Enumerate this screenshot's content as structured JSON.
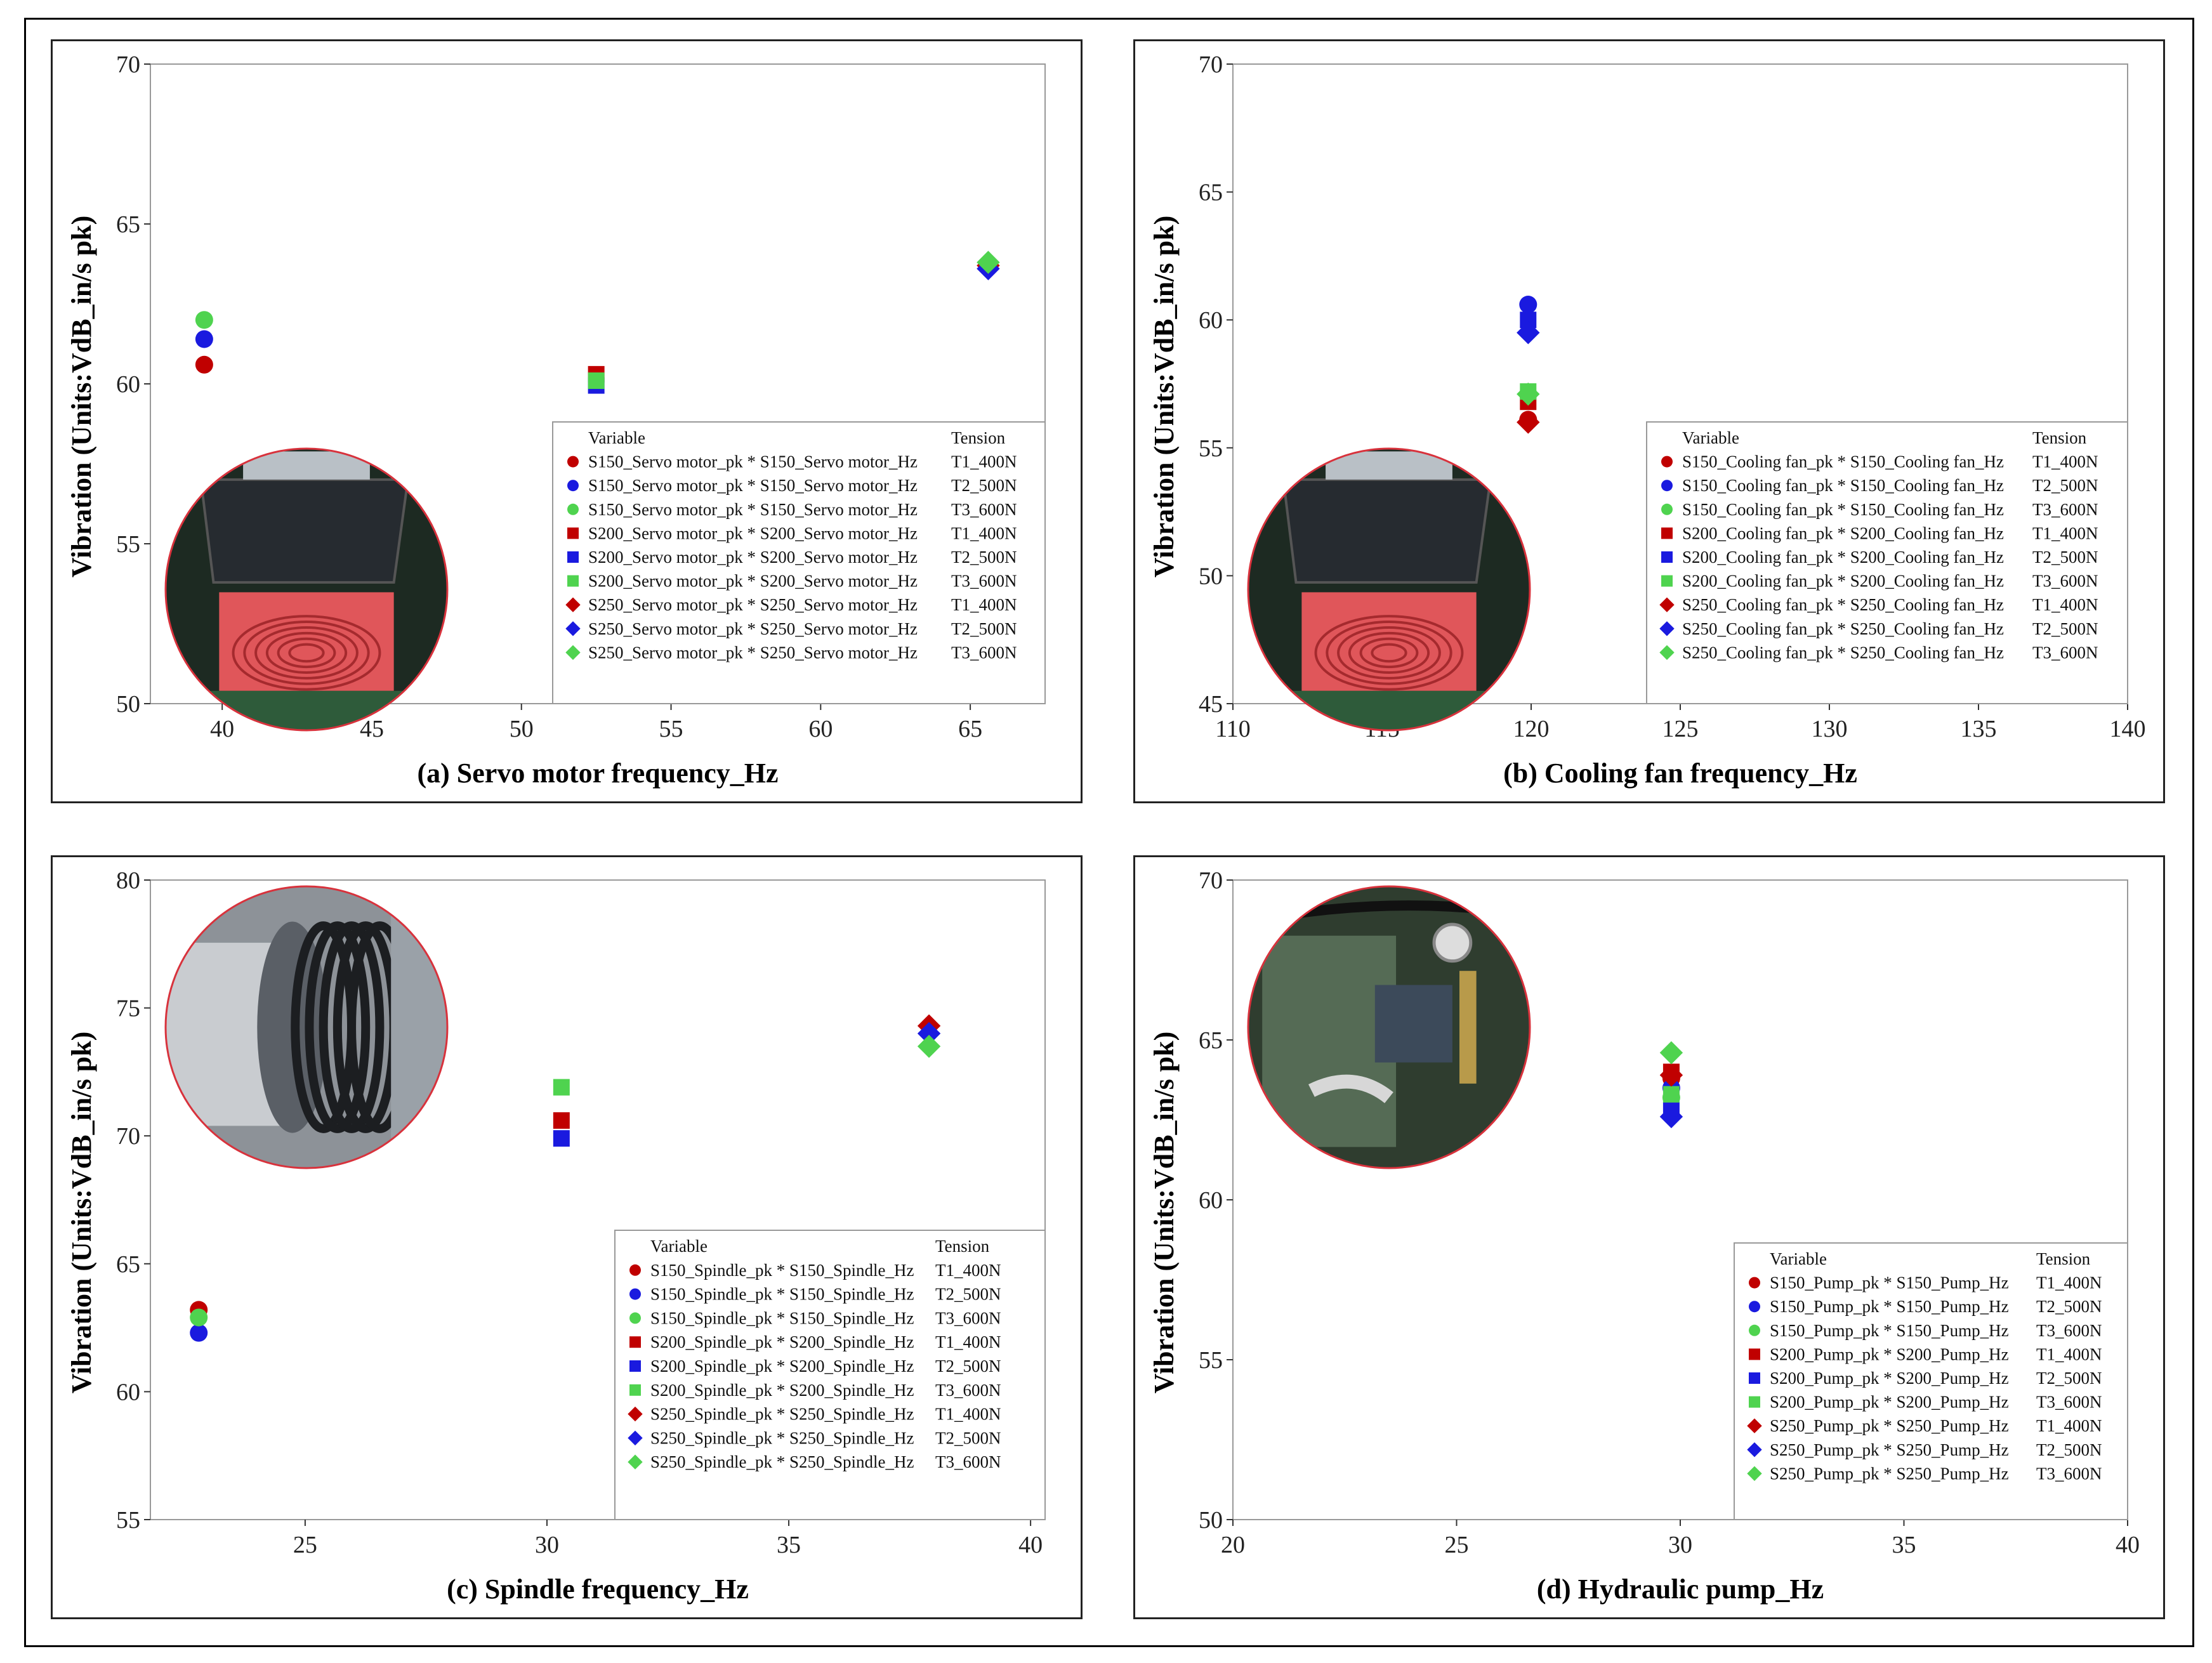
{
  "colors": {
    "red": "#c00000",
    "blue": "#1a1adf",
    "green": "#4fd34f"
  },
  "chart_data": [
    {
      "type": "scatter",
      "title": "",
      "xlabel": "(a) Servo motor frequency_Hz",
      "ylabel": "Vibration (Units:VdB_in/s pk)",
      "xlim": [
        37.6,
        67.5
      ],
      "ylim": [
        50,
        70
      ],
      "xticks": [
        40,
        45,
        50,
        55,
        60,
        65
      ],
      "yticks": [
        50,
        55,
        60,
        65,
        70
      ],
      "legend_position": "bottom-right",
      "legend_header": {
        "variable": "Variable",
        "group": "Tension"
      },
      "photo": "servo-motor-photo",
      "series": [
        {
          "name": "S150_Servo motor_pk * S150_Servo motor_Hz",
          "tension": "T1_400N",
          "color": "red",
          "marker": "circle",
          "x": [
            39.4
          ],
          "y": [
            60.6
          ]
        },
        {
          "name": "S150_Servo motor_pk * S150_Servo motor_Hz",
          "tension": "T2_500N",
          "color": "blue",
          "marker": "circle",
          "x": [
            39.4
          ],
          "y": [
            61.4
          ]
        },
        {
          "name": "S150_Servo motor_pk * S150_Servo motor_Hz",
          "tension": "T3_600N",
          "color": "green",
          "marker": "circle",
          "x": [
            39.4
          ],
          "y": [
            62.0
          ]
        },
        {
          "name": "S200_Servo motor_pk * S200_Servo motor_Hz",
          "tension": "T1_400N",
          "color": "red",
          "marker": "square",
          "x": [
            52.5
          ],
          "y": [
            60.3
          ]
        },
        {
          "name": "S200_Servo motor_pk * S200_Servo motor_Hz",
          "tension": "T2_500N",
          "color": "blue",
          "marker": "square",
          "x": [
            52.5
          ],
          "y": [
            59.95
          ]
        },
        {
          "name": "S200_Servo motor_pk * S200_Servo motor_Hz",
          "tension": "T3_600N",
          "color": "green",
          "marker": "square",
          "x": [
            52.5
          ],
          "y": [
            60.1
          ]
        },
        {
          "name": "S250_Servo motor_pk * S250_Servo motor_Hz",
          "tension": "T1_400N",
          "color": "red",
          "marker": "diamond",
          "x": [
            65.6
          ],
          "y": [
            63.7
          ]
        },
        {
          "name": "S250_Servo motor_pk * S250_Servo motor_Hz",
          "tension": "T2_500N",
          "color": "blue",
          "marker": "diamond",
          "x": [
            65.6
          ],
          "y": [
            63.6
          ]
        },
        {
          "name": "S250_Servo motor_pk * S250_Servo motor_Hz",
          "tension": "T3_600N",
          "color": "green",
          "marker": "diamond",
          "x": [
            65.6
          ],
          "y": [
            63.8
          ]
        }
      ]
    },
    {
      "type": "scatter",
      "title": "",
      "xlabel": "(b) Cooling fan frequency_Hz",
      "ylabel": "Vibration (Units:VdB_in/s pk)",
      "xlim": [
        110,
        140
      ],
      "ylim": [
        45,
        70
      ],
      "xticks": [
        110,
        115,
        120,
        125,
        130,
        135,
        140
      ],
      "yticks": [
        45,
        50,
        55,
        60,
        65,
        70
      ],
      "legend_position": "bottom-right",
      "legend_header": {
        "variable": "Variable",
        "group": "Tension"
      },
      "photo": "cooling-fan-photo",
      "series": [
        {
          "name": "S150_Cooling fan_pk * S150_Cooling fan_Hz",
          "tension": "T1_400N",
          "color": "red",
          "marker": "circle",
          "x": [
            119.9
          ],
          "y": [
            56.1
          ]
        },
        {
          "name": "S150_Cooling fan_pk * S150_Cooling fan_Hz",
          "tension": "T2_500N",
          "color": "blue",
          "marker": "circle",
          "x": [
            119.9
          ],
          "y": [
            60.6
          ]
        },
        {
          "name": "S150_Cooling fan_pk * S150_Cooling fan_Hz",
          "tension": "T3_600N",
          "color": "green",
          "marker": "circle",
          "x": [
            119.9
          ],
          "y": [
            57.1
          ]
        },
        {
          "name": "S200_Cooling fan_pk * S200_Cooling fan_Hz",
          "tension": "T1_400N",
          "color": "red",
          "marker": "square",
          "x": [
            119.9
          ],
          "y": [
            56.8
          ]
        },
        {
          "name": "S200_Cooling fan_pk * S200_Cooling fan_Hz",
          "tension": "T2_500N",
          "color": "blue",
          "marker": "square",
          "x": [
            119.9
          ],
          "y": [
            60.0
          ]
        },
        {
          "name": "S200_Cooling fan_pk * S200_Cooling fan_Hz",
          "tension": "T3_600N",
          "color": "green",
          "marker": "square",
          "x": [
            119.9
          ],
          "y": [
            57.2
          ]
        },
        {
          "name": "S250_Cooling fan_pk * S250_Cooling fan_Hz",
          "tension": "T1_400N",
          "color": "red",
          "marker": "diamond",
          "x": [
            119.9
          ],
          "y": [
            56.0
          ]
        },
        {
          "name": "S250_Cooling fan_pk * S250_Cooling fan_Hz",
          "tension": "T2_500N",
          "color": "blue",
          "marker": "diamond",
          "x": [
            119.9
          ],
          "y": [
            59.5
          ]
        },
        {
          "name": "S250_Cooling fan_pk * S250_Cooling fan_Hz",
          "tension": "T3_600N",
          "color": "green",
          "marker": "diamond",
          "x": [
            119.9
          ],
          "y": [
            57.1
          ]
        }
      ]
    },
    {
      "type": "scatter",
      "title": "",
      "xlabel": "(c) Spindle frequency_Hz",
      "ylabel": "Vibration (Units:VdB_in/s pk)",
      "xlim": [
        21.8,
        40.3
      ],
      "ylim": [
        55,
        80
      ],
      "xticks": [
        25,
        30,
        35,
        40
      ],
      "yticks": [
        55,
        60,
        65,
        70,
        75,
        80
      ],
      "legend_position": "bottom-right",
      "legend_header": {
        "variable": "Variable",
        "group": "Tension"
      },
      "photo": "spindle-photo",
      "series": [
        {
          "name": "S150_Spindle_pk * S150_Spindle_Hz",
          "tension": "T1_400N",
          "color": "red",
          "marker": "circle",
          "x": [
            22.8
          ],
          "y": [
            63.2
          ]
        },
        {
          "name": "S150_Spindle_pk * S150_Spindle_Hz",
          "tension": "T2_500N",
          "color": "blue",
          "marker": "circle",
          "x": [
            22.8
          ],
          "y": [
            62.3
          ]
        },
        {
          "name": "S150_Spindle_pk * S150_Spindle_Hz",
          "tension": "T3_600N",
          "color": "green",
          "marker": "circle",
          "x": [
            22.8
          ],
          "y": [
            62.9
          ]
        },
        {
          "name": "S200_Spindle_pk * S200_Spindle_Hz",
          "tension": "T1_400N",
          "color": "red",
          "marker": "square",
          "x": [
            30.3
          ],
          "y": [
            70.6
          ]
        },
        {
          "name": "S200_Spindle_pk * S200_Spindle_Hz",
          "tension": "T2_500N",
          "color": "blue",
          "marker": "square",
          "x": [
            30.3
          ],
          "y": [
            69.9
          ]
        },
        {
          "name": "S200_Spindle_pk * S200_Spindle_Hz",
          "tension": "T3_600N",
          "color": "green",
          "marker": "square",
          "x": [
            30.3
          ],
          "y": [
            71.9
          ]
        },
        {
          "name": "S250_Spindle_pk * S250_Spindle_Hz",
          "tension": "T1_400N",
          "color": "red",
          "marker": "diamond",
          "x": [
            37.9
          ],
          "y": [
            74.3
          ]
        },
        {
          "name": "S250_Spindle_pk * S250_Spindle_Hz",
          "tension": "T2_500N",
          "color": "blue",
          "marker": "diamond",
          "x": [
            37.9
          ],
          "y": [
            74.0
          ]
        },
        {
          "name": "S250_Spindle_pk * S250_Spindle_Hz",
          "tension": "T3_600N",
          "color": "green",
          "marker": "diamond",
          "x": [
            37.9
          ],
          "y": [
            73.5
          ]
        }
      ]
    },
    {
      "type": "scatter",
      "title": "",
      "xlabel": "(d) Hydraulic pump_Hz",
      "ylabel": "Vibration (Units:VdB_in/s pk)",
      "xlim": [
        20,
        40
      ],
      "ylim": [
        50,
        70
      ],
      "xticks": [
        20,
        25,
        30,
        35,
        40
      ],
      "yticks": [
        50,
        55,
        60,
        65,
        70
      ],
      "legend_position": "bottom-right",
      "legend_header": {
        "variable": "Variable",
        "group": "Tension"
      },
      "photo": "hydraulic-pump-photo",
      "series": [
        {
          "name": "S150_Pump_pk * S150_Pump_Hz",
          "tension": "T1_400N",
          "color": "red",
          "marker": "circle",
          "x": [
            29.8
          ],
          "y": [
            63.8
          ]
        },
        {
          "name": "S150_Pump_pk * S150_Pump_Hz",
          "tension": "T2_500N",
          "color": "blue",
          "marker": "circle",
          "x": [
            29.8
          ],
          "y": [
            63.5
          ]
        },
        {
          "name": "S150_Pump_pk * S150_Pump_Hz",
          "tension": "T3_600N",
          "color": "green",
          "marker": "circle",
          "x": [
            29.8
          ],
          "y": [
            63.2
          ]
        },
        {
          "name": "S200_Pump_pk * S200_Pump_Hz",
          "tension": "T1_400N",
          "color": "red",
          "marker": "square",
          "x": [
            29.8
          ],
          "y": [
            64.0
          ]
        },
        {
          "name": "S200_Pump_pk * S200_Pump_Hz",
          "tension": "T2_500N",
          "color": "blue",
          "marker": "square",
          "x": [
            29.8
          ],
          "y": [
            62.8
          ]
        },
        {
          "name": "S200_Pump_pk * S200_Pump_Hz",
          "tension": "T3_600N",
          "color": "green",
          "marker": "square",
          "x": [
            29.8
          ],
          "y": [
            63.3
          ]
        },
        {
          "name": "S250_Pump_pk * S250_Pump_Hz",
          "tension": "T1_400N",
          "color": "red",
          "marker": "diamond",
          "x": [
            29.8
          ],
          "y": [
            63.9
          ]
        },
        {
          "name": "S250_Pump_pk * S250_Pump_Hz",
          "tension": "T2_500N",
          "color": "blue",
          "marker": "diamond",
          "x": [
            29.8
          ],
          "y": [
            62.6
          ]
        },
        {
          "name": "S250_Pump_pk * S250_Pump_Hz",
          "tension": "T3_600N",
          "color": "green",
          "marker": "diamond",
          "x": [
            29.8
          ],
          "y": [
            64.6
          ]
        }
      ]
    }
  ]
}
